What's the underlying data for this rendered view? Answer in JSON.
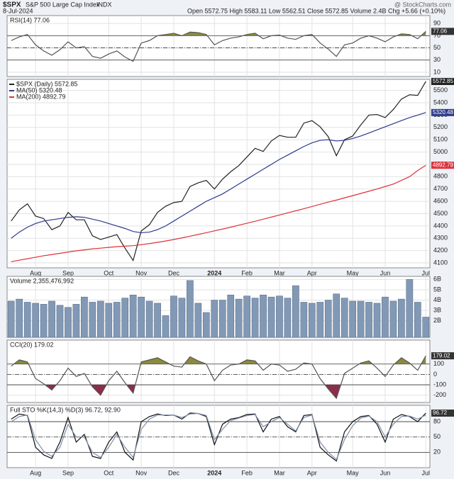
{
  "header": {
    "symbol": "$SPX",
    "name": "S&P 500 Large Cap Index",
    "exchange": "INDX",
    "date": "8-Jul-2024",
    "quote": "Open 5572.75 High 5583.11 Low 5562.51 Close 5572.85 Volume 2.4B Chg +5.66 (+0.10%)",
    "credit": "@ StockCharts.com"
  },
  "chart_data": [
    {
      "type": "line",
      "title": "RSI(14) 77.06",
      "ylim": [
        3,
        103
      ],
      "yticks": [
        10,
        30,
        50,
        70,
        90
      ],
      "grid": true,
      "ref_lines": [
        30,
        70
      ],
      "mid_line": 50,
      "fills": [
        {
          "level": 70,
          "side": "above",
          "color": "#8c8a3c"
        }
      ],
      "series": [
        {
          "color": "#555555",
          "values": [
            62,
            68,
            72,
            55,
            45,
            38,
            47,
            60,
            50,
            52,
            36,
            33,
            40,
            45,
            35,
            28,
            58,
            62,
            70,
            72,
            74,
            70,
            76,
            75,
            72,
            55,
            62,
            66,
            68,
            72,
            74,
            65,
            70,
            71,
            66,
            64,
            70,
            72,
            58,
            48,
            36,
            55,
            58,
            66,
            70,
            66,
            60,
            68,
            73,
            72,
            65,
            77.06
          ]
        }
      ]
    },
    {
      "type": "line",
      "ylim": [
        4060,
        5590
      ],
      "yticks": [
        4100,
        4200,
        4300,
        4400,
        4500,
        4600,
        4700,
        4800,
        4900,
        5000,
        5100,
        5200,
        5300,
        5400,
        5500
      ],
      "grid": true,
      "categories": [
        null,
        null,
        null,
        "Aug",
        null,
        null,
        null,
        "Sep",
        null,
        null,
        null,
        null,
        "Oct",
        null,
        null,
        null,
        "Nov",
        null,
        null,
        null,
        "Dec",
        null,
        null,
        null,
        null,
        "2024",
        null,
        null,
        null,
        "Feb",
        null,
        null,
        null,
        "Mar",
        null,
        null,
        null,
        "Apr",
        null,
        null,
        null,
        null,
        "May",
        null,
        null,
        null,
        "Jun",
        null,
        null,
        null,
        null,
        "Jul"
      ],
      "series": [
        {
          "name": "$SPX (Daily) 5572.85",
          "color": "#222222",
          "values": [
            4440,
            4530,
            4580,
            4480,
            4460,
            4370,
            4400,
            4510,
            4450,
            4450,
            4320,
            4290,
            4310,
            4330,
            4220,
            4120,
            4360,
            4410,
            4510,
            4560,
            4590,
            4600,
            4720,
            4750,
            4770,
            4700,
            4780,
            4840,
            4890,
            4960,
            5030,
            5005,
            5090,
            5135,
            5120,
            5120,
            5235,
            5255,
            5205,
            5125,
            4970,
            5100,
            5130,
            5220,
            5300,
            5305,
            5280,
            5345,
            5430,
            5465,
            5460,
            5572.85
          ]
        },
        {
          "name": "MA(50) 5320.48",
          "color": "#2b3a8c",
          "values": [
            4300,
            4350,
            4390,
            4420,
            4440,
            4450,
            4460,
            4470,
            4475,
            4470,
            4455,
            4440,
            4420,
            4400,
            4380,
            4355,
            4345,
            4350,
            4370,
            4400,
            4440,
            4480,
            4520,
            4560,
            4600,
            4630,
            4660,
            4700,
            4740,
            4780,
            4820,
            4860,
            4900,
            4940,
            4975,
            5010,
            5045,
            5075,
            5095,
            5100,
            5090,
            5095,
            5110,
            5130,
            5155,
            5180,
            5205,
            5230,
            5255,
            5280,
            5300,
            5320.48
          ]
        },
        {
          "name": "MA(200) 4892.79",
          "color": "#e0303a",
          "values": [
            4110,
            4122,
            4134,
            4146,
            4158,
            4168,
            4178,
            4188,
            4198,
            4206,
            4214,
            4220,
            4226,
            4232,
            4236,
            4240,
            4248,
            4257,
            4267,
            4278,
            4290,
            4303,
            4317,
            4331,
            4345,
            4360,
            4375,
            4390,
            4406,
            4422,
            4438,
            4455,
            4472,
            4489,
            4506,
            4523,
            4540,
            4558,
            4576,
            4594,
            4610,
            4628,
            4646,
            4664,
            4682,
            4700,
            4720,
            4740,
            4770,
            4800,
            4850,
            4892.79
          ]
        }
      ]
    },
    {
      "type": "bar",
      "title": "Volume 2,355,476,992",
      "ylim": [
        400000000,
        6300000000
      ],
      "yticks": [
        {
          "value": 2000000000,
          "label": "2B"
        },
        {
          "value": 3000000000,
          "label": "3B"
        },
        {
          "value": 4000000000,
          "label": "4B"
        },
        {
          "value": 5000000000,
          "label": "5B"
        },
        {
          "value": 6000000000,
          "label": "6B"
        }
      ],
      "grid": true,
      "series": [
        {
          "color": "#8299b6",
          "values": [
            3900000000,
            4100000000,
            3800000000,
            3700000000,
            3600000000,
            3900000000,
            3500000000,
            3300000000,
            3600000000,
            4300000000,
            3800000000,
            3900000000,
            3700000000,
            3800000000,
            4200000000,
            4500000000,
            4300000000,
            3900000000,
            3700000000,
            2500000000,
            4400000000,
            4200000000,
            5900000000,
            3700000000,
            2800000000,
            4000000000,
            4000000000,
            4500000000,
            4100000000,
            4400000000,
            4200000000,
            4500000000,
            4300000000,
            4400000000,
            4200000000,
            5400000000,
            3800000000,
            3700000000,
            3800000000,
            4000000000,
            4600000000,
            4200000000,
            3900000000,
            3900000000,
            3800000000,
            3700000000,
            4300000000,
            3900000000,
            4100000000,
            6000000000,
            3800000000,
            2355476992
          ]
        }
      ]
    },
    {
      "type": "line",
      "title": "CCI(20) 179.02",
      "ylim": [
        -270,
        330
      ],
      "yticks": [
        -200,
        -100,
        0,
        100
      ],
      "grid": true,
      "ref_lines": [
        -100,
        100
      ],
      "mid_line": 0,
      "fills": [
        {
          "level": 100,
          "side": "above",
          "color": "#8c8a3c"
        },
        {
          "level": -100,
          "side": "below",
          "color": "#8b2e4a"
        }
      ],
      "series": [
        {
          "color": "#555555",
          "values": [
            80,
            140,
            120,
            -40,
            -90,
            -150,
            -60,
            60,
            -20,
            10,
            -120,
            -200,
            -60,
            30,
            -80,
            -180,
            120,
            140,
            160,
            120,
            80,
            70,
            170,
            130,
            100,
            -60,
            40,
            90,
            100,
            140,
            130,
            40,
            100,
            90,
            30,
            50,
            110,
            100,
            -40,
            -140,
            -230,
            10,
            60,
            110,
            130,
            60,
            -20,
            90,
            160,
            110,
            40,
            179.02
          ]
        }
      ]
    },
    {
      "type": "line",
      "title": "Full STO %K(14,3) %D(3) 96.72, 92.90",
      "ylim": [
        -10,
        112
      ],
      "yticks": [
        20,
        50,
        80
      ],
      "grid": true,
      "ref_lines": [
        20,
        80
      ],
      "mid_line": 50,
      "categories": [
        null,
        null,
        null,
        "Aug",
        null,
        null,
        null,
        "Sep",
        null,
        null,
        null,
        null,
        "Oct",
        null,
        null,
        null,
        "Nov",
        null,
        null,
        null,
        "Dec",
        null,
        null,
        null,
        null,
        "2024",
        null,
        null,
        null,
        "Feb",
        null,
        null,
        null,
        "Mar",
        null,
        null,
        null,
        "Apr",
        null,
        null,
        null,
        null,
        "May",
        null,
        null,
        null,
        "Jun",
        null,
        null,
        null,
        null,
        "Jul"
      ],
      "series": [
        {
          "color": "#111111",
          "values": [
            85,
            95,
            92,
            30,
            15,
            8,
            40,
            88,
            40,
            55,
            12,
            8,
            40,
            60,
            20,
            5,
            80,
            90,
            95,
            92,
            93,
            85,
            97,
            96,
            90,
            35,
            75,
            85,
            88,
            94,
            95,
            60,
            85,
            90,
            70,
            60,
            92,
            94,
            30,
            15,
            3,
            60,
            80,
            90,
            92,
            75,
            40,
            85,
            94,
            90,
            80,
            96.72
          ]
        },
        {
          "color": "#7d8ea8",
          "values": [
            80,
            90,
            93,
            45,
            22,
            12,
            30,
            75,
            50,
            50,
            20,
            10,
            30,
            55,
            30,
            10,
            65,
            85,
            93,
            93,
            93,
            88,
            95,
            96,
            92,
            45,
            65,
            82,
            87,
            92,
            94,
            70,
            80,
            88,
            75,
            62,
            88,
            93,
            40,
            20,
            6,
            45,
            72,
            87,
            91,
            80,
            50,
            75,
            90,
            91,
            85,
            92.9
          ]
        }
      ]
    }
  ]
}
